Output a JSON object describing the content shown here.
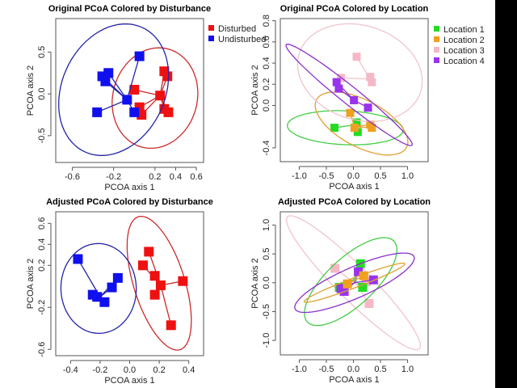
{
  "chart_data": [
    {
      "type": "scatter",
      "title": "Original PCoA Colored by Disturbance",
      "xlabel": "PCOA axis 1",
      "ylabel": "PCOA axis 2",
      "xlim": [
        -0.76,
        0.67
      ],
      "ylim": [
        -0.82,
        0.9
      ],
      "xticks": [
        -0.6,
        -0.2,
        0.2,
        0.4,
        0.6
      ],
      "xtick_labels": [
        "-0.6",
        "-0.2",
        "0.2",
        "0.4",
        "0.6"
      ],
      "yticks": [
        -0.5,
        0.0,
        0.5
      ],
      "ytick_labels": [
        "-0.5",
        "0.0",
        "0.5"
      ],
      "legend": "top-right outside",
      "series": [
        {
          "name": "Disturbed",
          "color": "#ee1111",
          "ellipse_color": "#cc2a2a",
          "centroid": [
            0.25,
            -0.02
          ],
          "ellipse": {
            "center": [
              0.2,
              -0.05
            ],
            "u": [
              0.06,
              0.6
            ],
            "v": [
              0.41,
              -0.03
            ]
          },
          "points": [
            [
              0.0,
              0.05
            ],
            [
              0.29,
              0.27
            ],
            [
              0.32,
              0.21
            ],
            [
              0.25,
              -0.02
            ],
            [
              0.05,
              -0.16
            ],
            [
              0.07,
              -0.25
            ],
            [
              0.29,
              -0.18
            ],
            [
              0.33,
              -0.22
            ]
          ]
        },
        {
          "name": "Undisturbed",
          "color": "#1010ee",
          "ellipse_color": "#2424a8",
          "centroid": [
            -0.07,
            -0.07
          ],
          "ellipse": {
            "center": [
              -0.2,
              0.05
            ],
            "u": [
              0.18,
              0.78
            ],
            "v": [
              0.5,
              -0.1
            ]
          },
          "points": [
            [
              0.05,
              0.45
            ],
            [
              -0.31,
              0.21
            ],
            [
              -0.25,
              0.25
            ],
            [
              -0.28,
              0.15
            ],
            [
              -0.07,
              -0.07
            ],
            [
              -0.36,
              -0.22
            ],
            [
              0.0,
              -0.22
            ]
          ]
        }
      ]
    },
    {
      "type": "scatter",
      "title": "Original PCoA Colored by Location",
      "xlabel": "PCOA axis 1",
      "ylabel": "PCOA axis 2",
      "xlim": [
        -1.35,
        1.38
      ],
      "ylim": [
        -0.53,
        0.82
      ],
      "xticks": [
        -1.0,
        -0.5,
        0.0,
        0.5,
        1.0
      ],
      "xtick_labels": [
        "-1.0",
        "-0.5",
        "0.0",
        "0.5",
        "1.0"
      ],
      "yticks": [
        -0.4,
        0.0,
        0.2,
        0.4,
        0.6,
        0.8
      ],
      "ytick_labels": [
        "-0.4",
        "0.0",
        "0.2",
        "0.4",
        "0.6",
        "0.8"
      ],
      "legend": "top-right outside",
      "series": [
        {
          "name": "Location 1",
          "color": "#22dd22",
          "ellipse_color": "#44cc44",
          "centroid": [
            0.06,
            -0.18
          ],
          "ellipse": {
            "center": [
              -0.15,
              -0.21
            ],
            "u": [
              1.07,
              -0.02
            ],
            "v": [
              0.0,
              0.16
            ]
          },
          "points": [
            [
              -0.35,
              -0.21
            ],
            [
              0.06,
              -0.16
            ],
            [
              0.08,
              -0.25
            ]
          ]
        },
        {
          "name": "Location 2",
          "color": "#f0a020",
          "ellipse_color": "#e0a030",
          "centroid": [
            0.02,
            -0.2
          ],
          "ellipse": {
            "center": [
              0.15,
              -0.17
            ],
            "u": [
              0.85,
              -0.2
            ],
            "v": [
              0.1,
              0.22
            ]
          },
          "points": [
            [
              -0.06,
              -0.07
            ],
            [
              0.02,
              -0.21
            ],
            [
              0.31,
              -0.18
            ],
            [
              0.34,
              -0.21
            ]
          ]
        },
        {
          "name": "Location 3",
          "color": "#f5b8c6",
          "ellipse_color": "#f0c4cc",
          "centroid": [
            0.31,
            0.25
          ],
          "ellipse": {
            "center": [
              0.12,
              0.31
            ],
            "u": [
              1.15,
              -0.1
            ],
            "v": [
              0.05,
              0.45
            ]
          },
          "points": [
            [
              0.06,
              0.46
            ],
            [
              0.31,
              0.27
            ],
            [
              0.34,
              0.22
            ],
            [
              -0.23,
              0.26
            ]
          ]
        },
        {
          "name": "Location 4",
          "color": "#9933ee",
          "ellipse_color": "#8a30cc",
          "centroid": [
            0.01,
            0.05
          ],
          "ellipse": {
            "center": [
              -0.08,
              0.1
            ],
            "u": [
              1.165,
              -0.47
            ],
            "v": [
              0.04,
              0.09
            ]
          },
          "points": [
            [
              -0.31,
              0.22
            ],
            [
              -0.27,
              0.16
            ],
            [
              0.01,
              0.05
            ],
            [
              0.27,
              -0.02
            ]
          ]
        }
      ]
    },
    {
      "type": "scatter",
      "title": "Adjusted PCoA Colored by Disturbance",
      "xlabel": "PCOA axis 1",
      "ylabel": "PCOA axis 2",
      "xlim": [
        -0.5,
        0.5
      ],
      "ylim": [
        -0.66,
        0.71
      ],
      "xticks": [
        -0.4,
        -0.2,
        0.0,
        0.2,
        0.4
      ],
      "xtick_labels": [
        "-0.4",
        "-0.2",
        "0.0",
        "0.2",
        "0.4"
      ],
      "yticks": [
        -0.6,
        -0.2,
        0.2,
        0.4,
        0.6
      ],
      "ytick_labels": [
        "-0.6",
        "-0.2",
        "0.2",
        "0.4",
        "0.6"
      ],
      "series": [
        {
          "color": "#ee1111",
          "ellipse_color": "#cc2a2a",
          "centroid": [
            0.21,
            0.01
          ],
          "ellipse": {
            "center": [
              0.2,
              0.03
            ],
            "u": [
              -0.135,
              0.635
            ],
            "v": [
              0.17,
              0.05
            ]
          },
          "points": [
            [
              0.13,
              0.33
            ],
            [
              0.09,
              0.2
            ],
            [
              0.17,
              0.1
            ],
            [
              0.21,
              0.01
            ],
            [
              0.36,
              0.05
            ],
            [
              0.17,
              -0.08
            ],
            [
              0.28,
              -0.37
            ]
          ]
        },
        {
          "color": "#1010ee",
          "ellipse_color": "#2424a8",
          "centroid": [
            -0.2,
            -0.1
          ],
          "ellipse": {
            "center": [
              -0.21,
              -0.02
            ],
            "u": [
              0.25,
              0.08
            ],
            "v": [
              -0.05,
              0.42
            ]
          },
          "points": [
            [
              -0.35,
              0.26
            ],
            [
              -0.25,
              -0.08
            ],
            [
              -0.22,
              -0.1
            ],
            [
              -0.17,
              -0.15
            ],
            [
              -0.12,
              -0.01
            ],
            [
              -0.08,
              0.08
            ]
          ]
        }
      ]
    },
    {
      "type": "scatter",
      "title": "Adjusted PCoA Colored by Location",
      "xlabel": "PCOA axis 1",
      "ylabel": "PCOA axis 2",
      "xlim": [
        -1.35,
        1.38
      ],
      "ylim": [
        -1.25,
        1.23
      ],
      "xticks": [
        -1.0,
        -0.5,
        0.0,
        0.5,
        1.0
      ],
      "xtick_labels": [
        "-1.0",
        "-0.5",
        "0.0",
        "0.5",
        "1.0"
      ],
      "yticks": [
        -1.0,
        -0.5,
        0.0,
        0.5,
        1.0
      ],
      "ytick_labels": [
        "-1.0",
        "-0.5",
        "0.0",
        "0.5",
        "1.0"
      ],
      "series": [
        {
          "color": "#f5b8c6",
          "ellipse_color": "#f0c4cc",
          "centroid": [
            0.06,
            -0.03
          ],
          "ellipse": {
            "center": [
              0.0,
              0.0
            ],
            "u": [
              1.22,
              -1.14
            ],
            "v": [
              0.2,
              0.22
            ]
          },
          "points": [
            [
              -0.34,
              0.25
            ],
            [
              0.29,
              -0.36
            ],
            [
              0.24,
              0.02
            ]
          ]
        },
        {
          "color": "#22dd22",
          "ellipse_color": "#44cc44",
          "centroid": [
            0.01,
            0.06
          ],
          "ellipse": {
            "center": [
              -0.05,
              0.02
            ],
            "u": [
              0.8,
              0.7
            ],
            "v": [
              -0.3,
              0.3
            ]
          },
          "points": [
            [
              0.13,
              0.33
            ],
            [
              -0.26,
              -0.08
            ],
            [
              0.17,
              -0.08
            ]
          ]
        },
        {
          "color": "#9933ee",
          "ellipse_color": "#8a30cc",
          "centroid": [
            0.02,
            0.0
          ],
          "ellipse": {
            "center": [
              0.02,
              0.0
            ],
            "u": [
              1.1,
              0.45
            ],
            "v": [
              -0.1,
              0.25
            ]
          },
          "points": [
            [
              0.09,
              0.19
            ],
            [
              0.37,
              0.05
            ],
            [
              -0.17,
              -0.15
            ],
            [
              -0.23,
              -0.1
            ]
          ]
        },
        {
          "color": "#f0a020",
          "ellipse_color": "#e0a030",
          "centroid": [
            0.04,
            0.05
          ],
          "ellipse": {
            "center": [
              0.02,
              0.0
            ],
            "u": [
              0.93,
              0.33
            ],
            "v": [
              -0.03,
              0.08
            ]
          },
          "points": [
            [
              0.19,
              0.12
            ],
            [
              -0.11,
              -0.02
            ]
          ]
        }
      ]
    }
  ]
}
